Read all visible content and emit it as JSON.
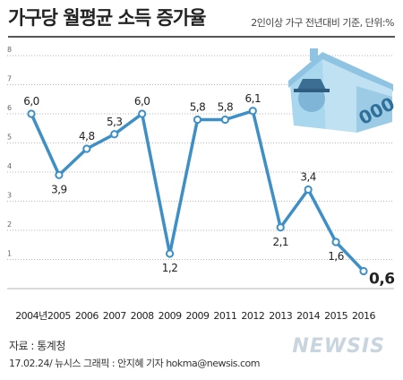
{
  "header": {
    "title": "가구당 월평균 소득 증가율",
    "subtitle": "2인이상 가구 전년대비 기준, 단위:%"
  },
  "footer": {
    "source": "자료 : 통계청",
    "credit": "17.02.24/ 뉴시스 그래픽 : 안지혜 기자 hokma@newsis.com",
    "logo": "NEWSIS"
  },
  "illustration": {
    "icon": "house-banknote-illustration",
    "digits": "000"
  },
  "colors": {
    "line": "#3d8fc6",
    "marker_fill": "#ffffff",
    "grid": "#b5b5b5",
    "axis_text": "#666666",
    "label_text": "#222222",
    "banknote": "#9fd0ea"
  },
  "chart_data": {
    "type": "line",
    "categories": [
      "2004년",
      "2005",
      "2006",
      "2007",
      "2008",
      "2009",
      "2009",
      "2011",
      "2012",
      "2013",
      "2014",
      "2015",
      "2016"
    ],
    "values": [
      6.0,
      3.9,
      4.8,
      5.3,
      6.0,
      1.2,
      5.8,
      5.8,
      6.1,
      2.1,
      3.4,
      1.6,
      0.6
    ],
    "value_labels": [
      "6,0",
      "3,9",
      "4,8",
      "5,3",
      "6,0",
      "1,2",
      "5,8",
      "5,8",
      "6,1",
      "2,1",
      "3,4",
      "1,6",
      "0,6"
    ],
    "y_ticks": [
      "1",
      "2",
      "3",
      "4",
      "5",
      "6",
      "7",
      "8"
    ],
    "ylim": [
      0,
      8
    ],
    "grid": "horizontal dotted"
  }
}
